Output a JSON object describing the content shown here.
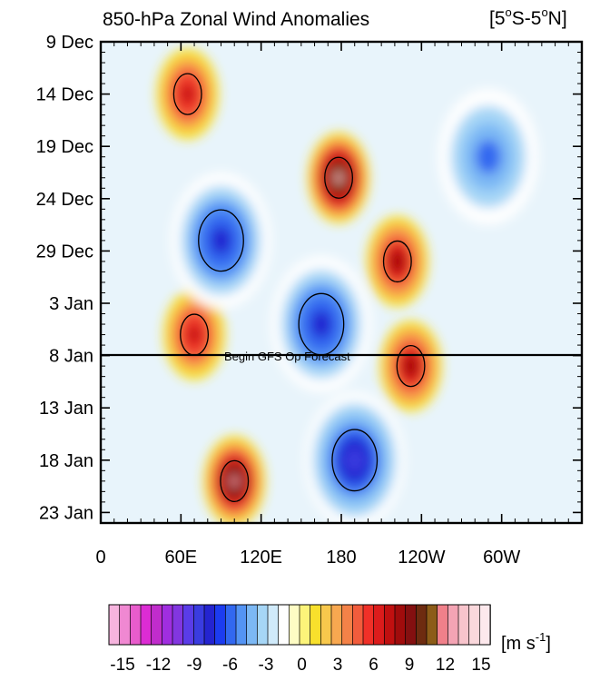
{
  "chart_data": {
    "type": "heatmap",
    "title": "850-hPa Zonal Wind Anomalies",
    "region": {
      "pre": "[5",
      "lat1": "S-5",
      "lat2": "N]",
      "deg": "o"
    },
    "y_ticks": [
      "9 Dec",
      "14 Dec",
      "19 Dec",
      "24 Dec",
      "29 Dec",
      "3 Jan",
      "8 Jan",
      "13 Jan",
      "18 Jan",
      "23 Jan"
    ],
    "x_ticks": [
      "0",
      "60E",
      "120E",
      "180",
      "120W",
      "60W"
    ],
    "x_range_deg_east": [
      0,
      360
    ],
    "forecast_line": {
      "date": "8 Jan",
      "label": "Begin GFS Op Forecast"
    },
    "colorbar": {
      "unit_prefix": "[m s",
      "unit_exp": "-1",
      "unit_suffix": "]",
      "tick_labels": [
        "-15",
        "-12",
        "-9",
        "-6",
        "-3",
        "0",
        "3",
        "6",
        "9",
        "12",
        "15"
      ],
      "colors": [
        "#f6b4de",
        "#f088d2",
        "#e85ccc",
        "#dc2cd4",
        "#c02ccc",
        "#a02ee0",
        "#8236e0",
        "#5a3ce8",
        "#3a3ce0",
        "#2424d0",
        "#1c3cf0",
        "#3268f0",
        "#5494f4",
        "#7cb8f4",
        "#a6d6f6",
        "#d0eafa",
        "#ffffff",
        "#fefcc4",
        "#fcf47a",
        "#f8e02c",
        "#f8c84c",
        "#f8a850",
        "#f48248",
        "#f25c3c",
        "#f03028",
        "#dc1c1c",
        "#c01010",
        "#a00c0c",
        "#841010",
        "#6e2c10",
        "#8c5c18",
        "#f0808a",
        "#f4a4b4",
        "#f8c4cc",
        "#fad8dc",
        "#fde8ec"
      ]
    },
    "anomaly_features": [
      {
        "kind": "westerly",
        "lon": 65,
        "date": "14 Dec",
        "level": 8
      },
      {
        "kind": "westerly",
        "lon": 178,
        "date": "22 Dec",
        "level": 13
      },
      {
        "kind": "westerly",
        "lon": 222,
        "date": "30 Dec",
        "level": 9
      },
      {
        "kind": "westerly",
        "lon": 70,
        "date": "6 Jan",
        "level": 8
      },
      {
        "kind": "westerly",
        "lon": 232,
        "date": "9 Jan",
        "level": 9
      },
      {
        "kind": "westerly",
        "lon": 100,
        "date": "20 Jan",
        "level": 12
      },
      {
        "kind": "easterly",
        "lon": 90,
        "date": "28 Dec",
        "level": -8
      },
      {
        "kind": "easterly",
        "lon": 165,
        "date": "5 Jan",
        "level": -8
      },
      {
        "kind": "easterly",
        "lon": 190,
        "date": "18 Jan",
        "level": -9
      },
      {
        "kind": "easterly",
        "lon": 290,
        "date": "20 Dec",
        "level": -6
      }
    ]
  }
}
